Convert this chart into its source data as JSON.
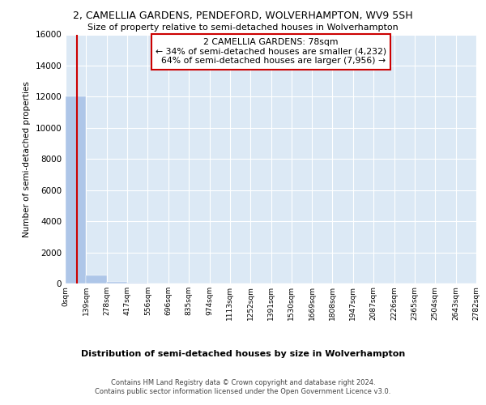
{
  "title1": "2, CAMELLIA GARDENS, PENDEFORD, WOLVERHAMPTON, WV9 5SH",
  "title2": "Size of property relative to semi-detached houses in Wolverhampton",
  "xlabel": "Distribution of semi-detached houses by size in Wolverhampton",
  "ylabel": "Number of semi-detached properties",
  "footnote": "Contains HM Land Registry data © Crown copyright and database right 2024.\nContains public sector information licensed under the Open Government Licence v3.0.",
  "property_label": "2 CAMELLIA GARDENS: 78sqm",
  "pct_smaller": 34,
  "pct_larger": 64,
  "count_smaller": 4232,
  "count_larger": 7956,
  "bin_edges": [
    0,
    139,
    278,
    417,
    556,
    696,
    835,
    974,
    1113,
    1252,
    1391,
    1530,
    1669,
    1808,
    1947,
    2087,
    2226,
    2365,
    2504,
    2643,
    2782
  ],
  "bar_heights": [
    12000,
    500,
    100,
    40,
    20,
    12,
    8,
    6,
    4,
    3,
    2,
    2,
    1,
    1,
    1,
    1,
    1,
    0,
    0,
    0
  ],
  "bar_color": "#aec6e8",
  "vline_color": "#cc0000",
  "vline_x": 78,
  "annotation_box_color": "#cc0000",
  "background_color": "#dce9f5",
  "ylim": [
    0,
    16000
  ],
  "yticks": [
    0,
    2000,
    4000,
    6000,
    8000,
    10000,
    12000,
    14000,
    16000
  ]
}
